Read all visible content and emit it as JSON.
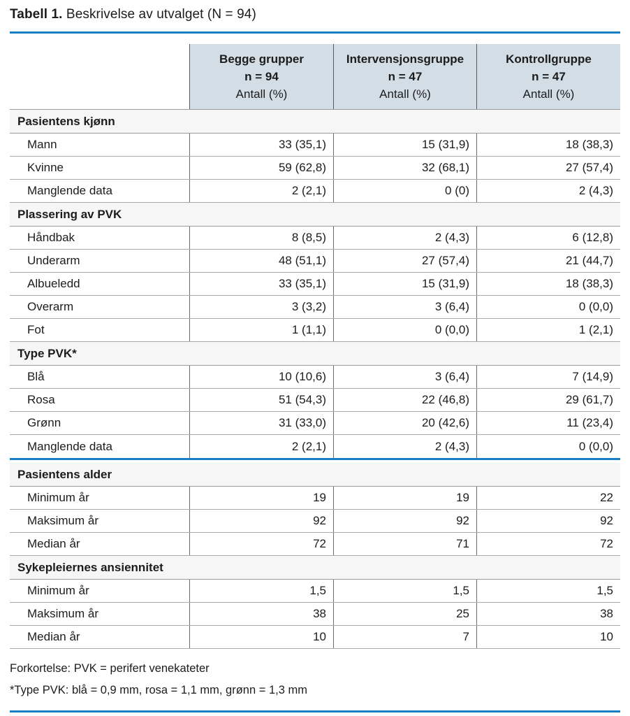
{
  "page": {
    "title_label": "Tabell 1.",
    "title_text": "Beskrivelse av utvalget (N = 94)"
  },
  "colors": {
    "accent_blue": "#1780c4",
    "header_bg": "#d3dde6",
    "section_bg": "#f6f6f6",
    "text": "#1c1c1c"
  },
  "table": {
    "column_headers": [
      {
        "group": "Begge grupper",
        "n": "n = 94",
        "measure": "Antall (%)"
      },
      {
        "group": "Intervensjonsgruppe",
        "n": "n = 47",
        "measure": "Antall (%)"
      },
      {
        "group": "Kontrollgruppe",
        "n": "n = 47",
        "measure": "Antall (%)"
      }
    ],
    "sections": [
      {
        "header": "Pasientens kjønn",
        "rows": [
          {
            "label": "Mann",
            "values": [
              "33 (35,1)",
              "15 (31,9)",
              "18 (38,3)"
            ]
          },
          {
            "label": "Kvinne",
            "values": [
              "59 (62,8)",
              "32 (68,1)",
              "27 (57,4)"
            ]
          },
          {
            "label": "Manglende data",
            "values": [
              "2 (2,1)",
              "0 (0)",
              "2 (4,3)"
            ]
          }
        ]
      },
      {
        "header": "Plassering av PVK",
        "rows": [
          {
            "label": "Håndbak",
            "values": [
              "8 (8,5)",
              "2 (4,3)",
              "6 (12,8)"
            ]
          },
          {
            "label": "Underarm",
            "values": [
              "48 (51,1)",
              "27 (57,4)",
              "21 (44,7)"
            ]
          },
          {
            "label": "Albueledd",
            "values": [
              "33 (35,1)",
              "15 (31,9)",
              "18 (38,3)"
            ]
          },
          {
            "label": "Overarm",
            "values": [
              "3 (3,2)",
              "3 (6,4)",
              "0 (0,0)"
            ]
          },
          {
            "label": "Fot",
            "values": [
              "1 (1,1)",
              "0 (0,0)",
              "1 (2,1)"
            ]
          }
        ]
      },
      {
        "header": "Type PVK*",
        "rows": [
          {
            "label": "Blå",
            "values": [
              "10 (10,6)",
              "3 (6,4)",
              "7 (14,9)"
            ]
          },
          {
            "label": "Rosa",
            "values": [
              "51 (54,3)",
              "22 (46,8)",
              "29 (61,7)"
            ]
          },
          {
            "label": "Grønn",
            "values": [
              "31 (33,0)",
              "20 (42,6)",
              "11 (23,4)"
            ]
          },
          {
            "label": "Manglende data",
            "values": [
              "2 (2,1)",
              "2 (4,3)",
              "0 (0,0)"
            ]
          }
        ]
      },
      {
        "header": "Pasientens alder",
        "rows": [
          {
            "label": "Minimum år",
            "values": [
              "19",
              "19",
              "22"
            ]
          },
          {
            "label": "Maksimum år",
            "values": [
              "92",
              "92",
              "92"
            ]
          },
          {
            "label": "Median år",
            "values": [
              "72",
              "71",
              "72"
            ]
          }
        ]
      },
      {
        "header": "Sykepleiernes ansiennitet",
        "rows": [
          {
            "label": "Minimum år",
            "values": [
              "1,5",
              "1,5",
              "1,5"
            ]
          },
          {
            "label": "Maksimum år",
            "values": [
              "38",
              "25",
              "38"
            ]
          },
          {
            "label": "Median år",
            "values": [
              "10",
              "7",
              "10"
            ]
          }
        ]
      }
    ]
  },
  "footnotes": {
    "abbreviation": "Forkortelse: PVK = perifert venekateter",
    "type_note": "*Type PVK: blå = 0,9 mm, rosa = 1,1 mm, grønn = 1,3 mm"
  }
}
